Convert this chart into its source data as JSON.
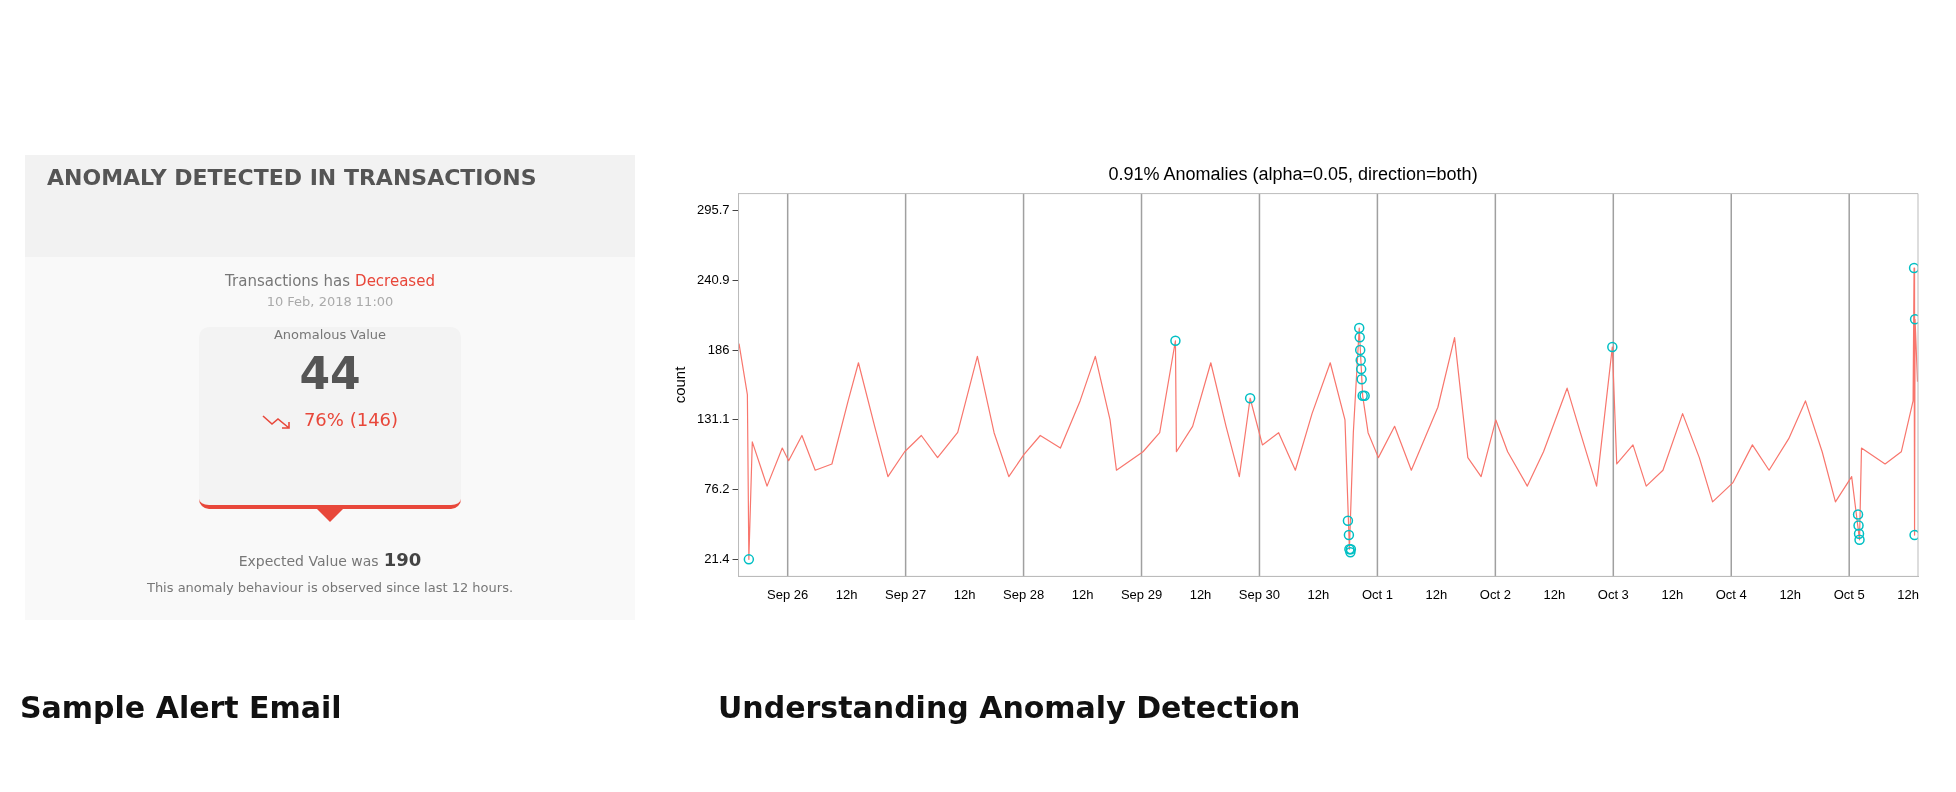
{
  "chart_data": [
    {
      "type": "other",
      "title": "ANOMALY DETECTED IN TRANSACTIONS",
      "annotations": [
        "Transactions has",
        "Decreased",
        "10 Feb, 2018 11:00",
        "Anomalous Value",
        "44",
        "76% (146)",
        "Expected Value was",
        "190",
        "This anomaly behaviour is observed since last 12 hours.",
        "Sample Alert Email"
      ]
    },
    {
      "type": "line",
      "title": "0.91% Anomalies (alpha=0.05, direction=both)",
      "ylabel": "count",
      "annotations": [
        "Understanding Anomaly Detection"
      ],
      "xlim": [
        "--09-25T14:00",
        "--10-05T14:00"
      ],
      "xticks": [
        {
          "value": "--09-26",
          "label": "Sep 26"
        },
        {
          "value": "--09-26T12:00",
          "label": "12h"
        },
        {
          "value": "--09-27",
          "label": "Sep 27"
        },
        {
          "value": "--09-27T12:00",
          "label": "12h"
        },
        {
          "value": "--09-28",
          "label": "Sep 28"
        },
        {
          "value": "--09-28T12:00",
          "label": "12h"
        },
        {
          "value": "--09-29",
          "label": "Sep 29"
        },
        {
          "value": "--09-29T12:00",
          "label": "12h"
        },
        {
          "value": "--09-30",
          "label": "Sep 30"
        },
        {
          "value": "--09-30T12:00",
          "label": "12h"
        },
        {
          "value": "--10-01",
          "label": "Oct 1"
        },
        {
          "value": "--10-01T12:00",
          "label": "12h"
        },
        {
          "value": "--10-02",
          "label": "Oct 2"
        },
        {
          "value": "--10-02T12:00",
          "label": "12h"
        },
        {
          "value": "--10-03",
          "label": "Oct 3"
        },
        {
          "value": "--10-03T12:00",
          "label": "12h"
        },
        {
          "value": "--10-04",
          "label": "Oct 4"
        },
        {
          "value": "--10-04T12:00",
          "label": "12h"
        },
        {
          "value": "--10-05",
          "label": "Oct 5"
        },
        {
          "value": "--10-05T12:00",
          "label": "12h"
        }
      ],
      "ylim": [
        8,
        309
      ],
      "yticks": [
        21.4,
        76.2,
        131.1,
        186,
        240.9,
        295.7
      ],
      "ref_lines": [
        {
          "axis": "x",
          "value": "--09-26",
          "color": "#a0a0a0"
        },
        {
          "axis": "x",
          "value": "--09-27",
          "color": "#a0a0a0"
        },
        {
          "axis": "x",
          "value": "--09-28",
          "color": "#a0a0a0"
        },
        {
          "axis": "x",
          "value": "--09-29",
          "color": "#a0a0a0"
        },
        {
          "axis": "x",
          "value": "--09-30",
          "color": "#a0a0a0"
        },
        {
          "axis": "x",
          "value": "--10-01",
          "color": "#a0a0a0"
        },
        {
          "axis": "x",
          "value": "--10-02",
          "color": "#a0a0a0"
        },
        {
          "axis": "x",
          "value": "--10-03",
          "color": "#a0a0a0"
        },
        {
          "axis": "x",
          "value": "--10-04",
          "color": "#a0a0a0"
        },
        {
          "axis": "x",
          "value": "--10-05",
          "color": "#a0a0a0"
        }
      ],
      "series": [
        {
          "type": "line",
          "color": "#f8766d",
          "marker": "none",
          "x": [
            "--09-25T14:06",
            "--09-25T15:48",
            "--09-25T16:06",
            "--09-25T16:48",
            "--09-25T19:48",
            "--09-25T22:54",
            "--09-26T00:12",
            "--09-26T02:54",
            "--09-26T05:36",
            "--09-26T09:00",
            "--09-26T12:18",
            "--09-26T14:24",
            "--09-26T17:42",
            "--09-26T20:24",
            "--09-26T23:48",
            "--09-27T03:12",
            "--09-27T06:30",
            "--09-27T10:36",
            "--09-27T14:36",
            "--09-27T18:00",
            "--09-27T21:00",
            "--09-28T00:06",
            "--09-28T03:24",
            "--09-28T07:30",
            "--09-28T11:30",
            "--09-28T14:36",
            "--09-28T17:36",
            "--09-28T18:54",
            "--09-29T00:18",
            "--09-29T03:42",
            "--09-29T06:54",
            "--09-29T07:06",
            "--09-29T10:24",
            "--09-29T14:06",
            "--09-29T17:12",
            "--09-29T19:54",
            "--09-29T22:06",
            "--09-30T00:36",
            "--09-30T03:54",
            "--09-30T07:18",
            "--09-30T10:42",
            "--09-30T14:24",
            "--09-30T17:24",
            "--09-30T18:18",
            "--09-30T19:06",
            "--09-30T20:18",
            "--09-30T21:00",
            "--09-30T22:06",
            "--10-01T00:12",
            "--10-01T03:30",
            "--10-01T06:54",
            "--10-01T12:18",
            "--10-01T15:42",
            "--10-01T18:24",
            "--10-01T21:06",
            "--10-02T00:06",
            "--10-02T02:30",
            "--10-02T06:30",
            "--10-02T09:48",
            "--10-02T14:36",
            "--10-02T17:18",
            "--10-02T20:36",
            "--10-02T23:48",
            "--10-03T00:42",
            "--10-03T04:00",
            "--10-03T06:42",
            "--10-03T10:06",
            "--10-03T14:06",
            "--10-03T17:30",
            "--10-03T20:12",
            "--10-04T00:18",
            "--10-04T04:18",
            "--10-04T07:42",
            "--10-04T11:42",
            "--10-04T15:06",
            "--10-04T18:30",
            "--10-04T21:12",
            "--10-05T00:30",
            "--10-05T02:06",
            "--10-05T02:30",
            "--10-05T07:18",
            "--10-05T10:36",
            "--10-05T13:00",
            "--10-05T13:12",
            "--10-05T13:18",
            "--10-05T13:24",
            "--10-05T13:54"
          ],
          "values": [
            191,
            151,
            21.4,
            113.8,
            79,
            108.9,
            99,
            118.8,
            91.5,
            96.4,
            146,
            176,
            126,
            86.5,
            106,
            118.8,
            101.4,
            121.3,
            181,
            121,
            86.5,
            103.9,
            118.8,
            108.9,
            146,
            181,
            131,
            91.5,
            106,
            121,
            193.3,
            106,
            126,
            176,
            126,
            86.5,
            148.1,
            111.4,
            121,
            91.5,
            136,
            176,
            131,
            29.4,
            121,
            203.3,
            150,
            121,
            101.4,
            126,
            91.5,
            141,
            195.8,
            101.4,
            86.5,
            131,
            106,
            79,
            106,
            156,
            121,
            79,
            188.4,
            96.4,
            111.4,
            79,
            91.5,
            136,
            101.4,
            66.6,
            81.5,
            111.4,
            91.5,
            116.3,
            146,
            106,
            66.6,
            86.5,
            36.8,
            108.9,
            96.4,
            106,
            146,
            250.5,
            40.5,
            210.2,
            161
          ]
        },
        {
          "type": "scatter",
          "color": "#00bfc4",
          "marker": "circle",
          "x": [
            "--09-25T16:06",
            "--09-29T06:54",
            "--09-29T22:06",
            "--09-30T18:00",
            "--09-30T18:12",
            "--09-30T18:18",
            "--09-30T18:30",
            "--09-30T18:36",
            "--09-30T20:18",
            "--09-30T20:24",
            "--09-30T20:30",
            "--09-30T20:36",
            "--09-30T20:42",
            "--09-30T20:48",
            "--09-30T21:00",
            "--09-30T21:24",
            "--10-02T23:48",
            "--10-05T01:48",
            "--10-05T01:54",
            "--10-05T02:00",
            "--10-05T02:06",
            "--10-05T13:12",
            "--10-05T13:18",
            "--10-05T13:24"
          ],
          "values": [
            21.4,
            193.3,
            148.1,
            51.7,
            40.5,
            29.4,
            27,
            29.4,
            203.3,
            196,
            186,
            178,
            171,
            163,
            150,
            150,
            188.4,
            56.7,
            48,
            41.6,
            36.8,
            250.5,
            40.5,
            210.2
          ]
        }
      ]
    }
  ]
}
